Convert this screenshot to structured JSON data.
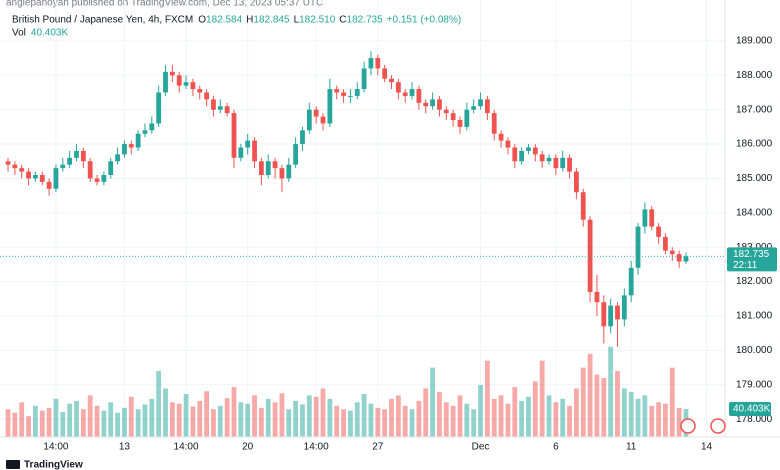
{
  "header": {
    "published": "anglepanoyan published on TradingView.com, Dec 13, 2023 05:37 UTC",
    "brand": "TradingView"
  },
  "chart_data": {
    "type": "candlestick",
    "title": "British Pound / Japanese Yen, 4h, FXCM",
    "ohlc_legend": [
      {
        "label": "O",
        "value": "182.584"
      },
      {
        "label": "H",
        "value": "182.845"
      },
      {
        "label": "L",
        "value": "182.510"
      },
      {
        "label": "C",
        "value": "182.735"
      }
    ],
    "change": "+0.151 (+0.08%)",
    "volume_title": "Vol",
    "up_color": "#26a69a",
    "down_color": "#ef5350",
    "grid": true,
    "open": [
      185.5,
      185.4,
      185.3,
      185.2,
      185.0,
      185.1,
      184.9,
      184.7,
      185.3,
      185.4,
      185.6,
      185.8,
      185.5,
      185.0,
      184.9,
      185.1,
      185.5,
      185.7,
      186.0,
      185.9,
      186.3,
      186.4,
      186.6,
      187.5,
      188.1,
      188.0,
      187.7,
      187.8,
      187.6,
      187.5,
      187.3,
      187.0,
      187.1,
      186.9,
      185.6,
      185.9,
      186.1,
      185.5,
      185.1,
      185.5,
      185.3,
      185.0,
      185.4,
      186.0,
      186.4,
      187.0,
      186.8,
      186.6,
      187.6,
      187.5,
      187.4,
      187.4,
      187.6,
      188.2,
      188.5,
      188.2,
      187.9,
      187.8,
      187.5,
      187.4,
      187.6,
      187.2,
      187.1,
      187.3,
      187.0,
      186.9,
      186.7,
      186.5,
      187.0,
      187.1,
      187.3,
      186.9,
      186.3,
      186.1,
      185.9,
      185.5,
      185.8,
      185.9,
      185.7,
      185.5,
      185.6,
      185.3,
      185.6,
      185.2,
      184.6,
      183.8,
      181.7,
      181.4,
      180.7,
      181.3,
      180.9,
      181.6,
      182.4,
      183.6,
      184.1,
      183.6,
      183.3,
      182.9,
      182.8,
      182.584
    ],
    "high": [
      185.6,
      185.5,
      185.4,
      185.3,
      185.2,
      185.2,
      185.0,
      185.4,
      185.6,
      185.8,
      186.0,
      185.9,
      185.6,
      185.1,
      185.2,
      185.6,
      185.9,
      186.1,
      186.1,
      186.4,
      186.6,
      186.8,
      187.7,
      188.3,
      188.3,
      188.1,
      188.0,
      187.9,
      187.7,
      187.6,
      187.4,
      187.3,
      187.2,
      187.0,
      186.0,
      186.3,
      186.2,
      185.6,
      185.7,
      185.6,
      185.4,
      185.6,
      186.2,
      186.5,
      187.2,
      187.1,
      186.9,
      187.9,
      187.7,
      187.6,
      187.6,
      187.8,
      188.4,
      188.7,
      188.6,
      188.3,
      188.0,
      187.9,
      187.6,
      187.8,
      187.7,
      187.3,
      187.5,
      187.4,
      187.1,
      187.0,
      186.8,
      187.2,
      187.3,
      187.5,
      187.4,
      187.0,
      186.4,
      186.2,
      186.0,
      185.9,
      186.0,
      186.0,
      185.8,
      185.7,
      185.7,
      185.8,
      185.7,
      185.3,
      184.7,
      183.9,
      182.2,
      181.6,
      181.5,
      181.4,
      181.8,
      182.6,
      183.7,
      184.3,
      184.2,
      183.7,
      183.4,
      183.0,
      182.9,
      182.845
    ],
    "low": [
      185.2,
      185.1,
      185.0,
      184.8,
      184.9,
      184.8,
      184.5,
      184.6,
      185.2,
      185.3,
      185.5,
      185.3,
      184.9,
      184.8,
      184.8,
      185.0,
      185.4,
      185.6,
      185.7,
      185.8,
      186.2,
      186.3,
      186.5,
      187.4,
      187.8,
      187.5,
      187.6,
      187.4,
      187.3,
      187.1,
      186.8,
      186.9,
      186.8,
      185.3,
      185.5,
      185.7,
      185.3,
      184.8,
      185.0,
      185.0,
      184.6,
      184.9,
      185.3,
      185.8,
      186.3,
      186.6,
      186.4,
      186.5,
      187.3,
      187.2,
      187.2,
      187.3,
      187.5,
      188.0,
      188.0,
      187.8,
      187.6,
      187.3,
      187.2,
      187.3,
      187.0,
      186.9,
      187.0,
      186.8,
      186.7,
      186.5,
      186.3,
      186.4,
      186.9,
      187.0,
      186.7,
      186.1,
      185.9,
      185.7,
      185.3,
      185.4,
      185.7,
      185.5,
      185.3,
      185.4,
      185.1,
      185.2,
      185.0,
      184.4,
      183.6,
      181.4,
      181.0,
      180.2,
      180.5,
      180.1,
      180.7,
      181.4,
      182.2,
      183.4,
      183.5,
      183.1,
      182.8,
      182.6,
      182.4,
      182.51
    ],
    "close": [
      185.4,
      185.3,
      185.2,
      185.0,
      185.1,
      184.9,
      184.7,
      185.3,
      185.4,
      185.6,
      185.8,
      185.5,
      185.0,
      184.9,
      185.1,
      185.5,
      185.7,
      186.0,
      185.9,
      186.3,
      186.4,
      186.6,
      187.5,
      188.1,
      188.0,
      187.7,
      187.8,
      187.6,
      187.5,
      187.3,
      187.0,
      187.1,
      186.9,
      185.6,
      185.9,
      186.1,
      185.5,
      185.1,
      185.5,
      185.3,
      185.0,
      185.4,
      186.0,
      186.4,
      187.0,
      186.8,
      186.6,
      187.6,
      187.5,
      187.4,
      187.4,
      187.6,
      188.2,
      188.5,
      188.2,
      187.9,
      187.8,
      187.5,
      187.4,
      187.6,
      187.2,
      187.1,
      187.3,
      187.0,
      186.9,
      186.7,
      186.5,
      187.0,
      187.1,
      187.3,
      186.9,
      186.3,
      186.1,
      185.9,
      185.5,
      185.8,
      185.9,
      185.7,
      185.5,
      185.6,
      185.3,
      185.6,
      185.2,
      184.6,
      183.8,
      181.7,
      181.4,
      180.7,
      181.3,
      180.9,
      181.6,
      182.4,
      183.6,
      184.1,
      183.6,
      183.3,
      182.9,
      182.8,
      182.584,
      182.735
    ],
    "volume": [
      40000,
      35000,
      50000,
      30000,
      45000,
      38000,
      42000,
      55000,
      36000,
      48000,
      52000,
      40000,
      60000,
      45000,
      38000,
      50000,
      35000,
      42000,
      58000,
      40000,
      47000,
      55000,
      95000,
      70000,
      50000,
      48000,
      62000,
      44000,
      52000,
      66000,
      40000,
      45000,
      56000,
      72000,
      50000,
      48000,
      60000,
      42000,
      55000,
      50000,
      63000,
      40000,
      52000,
      47000,
      60000,
      58000,
      70000,
      55000,
      45000,
      40000,
      38000,
      50000,
      62000,
      48000,
      42000,
      40000,
      55000,
      60000,
      45000,
      40000,
      52000,
      70000,
      100000,
      65000,
      50000,
      45000,
      60000,
      48000,
      40000,
      75000,
      110000,
      55000,
      60000,
      48000,
      72000,
      52000,
      58000,
      80000,
      110000,
      60000,
      50000,
      55000,
      45000,
      70000,
      100000,
      120000,
      90000,
      85000,
      130000,
      95000,
      70000,
      65000,
      55000,
      60000,
      45000,
      50000,
      48000,
      100000,
      42000,
      40403
    ],
    "xlim": [
      -1.17,
      104.7
    ],
    "xticks": [
      {
        "value": 7,
        "label": "14:00"
      },
      {
        "value": 17,
        "label": "13"
      },
      {
        "value": 26,
        "label": "14:00"
      },
      {
        "value": 35,
        "label": "20"
      },
      {
        "value": 45,
        "label": "14:00"
      },
      {
        "value": 54,
        "label": "27"
      },
      {
        "value": 69,
        "label": "Dec"
      },
      {
        "value": 80,
        "label": "6"
      },
      {
        "value": 91,
        "label": "11"
      },
      {
        "value": 102,
        "label": "14"
      }
    ],
    "ylim": [
      177.48,
      190.19
    ],
    "yticks": [
      {
        "value": 178,
        "label": "178.000"
      },
      {
        "value": 179,
        "label": "179.000"
      },
      {
        "value": 180,
        "label": "180.000"
      },
      {
        "value": 181,
        "label": "181.000"
      },
      {
        "value": 182,
        "label": "182.000"
      },
      {
        "value": 183,
        "label": "183.000"
      },
      {
        "value": 184,
        "label": "184.000"
      },
      {
        "value": 185,
        "label": "185.000"
      },
      {
        "value": 186,
        "label": "186.000"
      },
      {
        "value": 187,
        "label": "187.000"
      },
      {
        "value": 188,
        "label": "188.000"
      },
      {
        "value": 189,
        "label": "189.000"
      }
    ],
    "volume_ylim": [
      0,
      630000
    ],
    "last_price": 182.735,
    "countdown": "22:11",
    "last_volume": {
      "value": 40403,
      "label": "40.403K"
    }
  }
}
